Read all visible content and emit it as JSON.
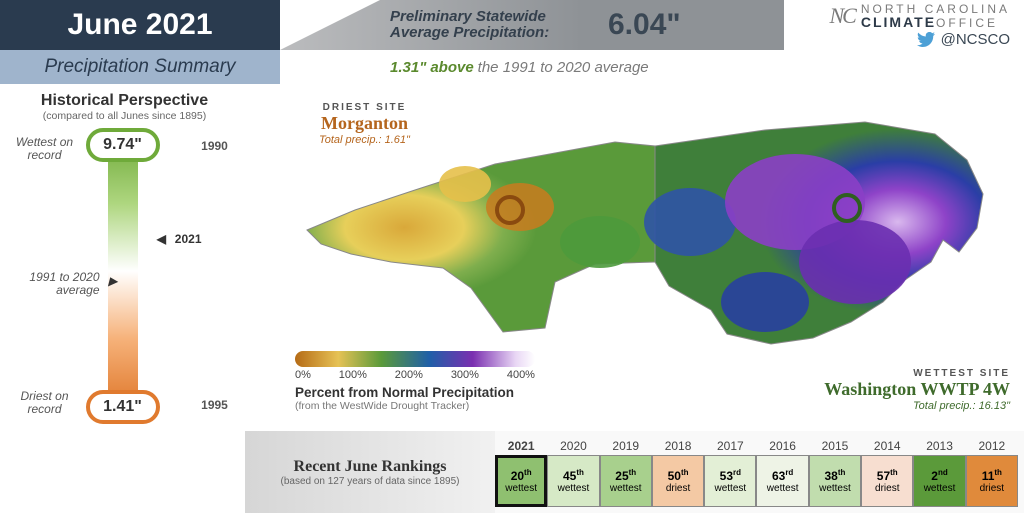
{
  "header": {
    "title": "June 2021",
    "subtitle": "Precipitation Summary",
    "prelim_label_l1": "Preliminary Statewide",
    "prelim_label_l2": "Average Precipitation:",
    "prelim_value": "6.04\"",
    "anomaly_value": "1.31\"",
    "anomaly_dir": "above",
    "anomaly_baseline": "the 1991 to 2020 average",
    "logo_top": "NORTH CAROLINA",
    "logo_bottom": "CLIMATE",
    "logo_bottom2": "OFFICE",
    "twitter": "@NCSCO"
  },
  "historical": {
    "title": "Historical Perspective",
    "subtitle": "(compared to all Junes since 1895)",
    "wettest_label": "Wettest on record",
    "wettest_value": "9.74\"",
    "wettest_year": "1990",
    "driest_label": "Driest on record",
    "driest_value": "1.41\"",
    "driest_year": "1995",
    "current_year": "2021",
    "avg_label": "1991 to 2020 average",
    "bar_colors": {
      "wet": "#6faa3a",
      "mid": "#ffffff",
      "dry": "#e07a2e"
    }
  },
  "map": {
    "driest_kind": "DRIEST SITE",
    "driest_name": "Morganton",
    "driest_total": "Total precip.: 1.61\"",
    "wettest_kind": "WETTEST SITE",
    "wettest_name": "Washington WWTP 4W",
    "wettest_total": "Total precip.: 16.13\"",
    "legend_title": "Percent from Normal Precipitation",
    "legend_sub": "(from the WestWide Drought Tracker)",
    "legend_ticks": [
      "0%",
      "100%",
      "200%",
      "300%",
      "400%"
    ],
    "legend_stops": [
      "#b56b16",
      "#e6c255",
      "#5a9a3a",
      "#1f5fa8",
      "#7a2fb0",
      "#e9d7f5",
      "#ffffff"
    ],
    "dry_ring_color": "#8a4a0f",
    "wet_ring_color": "#2f5f20"
  },
  "rankings": {
    "title": "Recent June Rankings",
    "subtitle": "(based on 127 years of data since 1895)",
    "years": [
      "2021",
      "2020",
      "2019",
      "2018",
      "2017",
      "2016",
      "2015",
      "2014",
      "2013",
      "2012"
    ],
    "cells": [
      {
        "ord": "20",
        "suf": "th",
        "kind": "wettest",
        "bg": "#8fc070"
      },
      {
        "ord": "45",
        "suf": "th",
        "kind": "wettest",
        "bg": "#d6e9c6"
      },
      {
        "ord": "25",
        "suf": "th",
        "kind": "wettest",
        "bg": "#a8d08d"
      },
      {
        "ord": "50",
        "suf": "th",
        "kind": "driest",
        "bg": "#f4c9a4"
      },
      {
        "ord": "53",
        "suf": "rd",
        "kind": "wettest",
        "bg": "#e3efd6"
      },
      {
        "ord": "63",
        "suf": "rd",
        "kind": "wettest",
        "bg": "#eef3e6"
      },
      {
        "ord": "38",
        "suf": "th",
        "kind": "wettest",
        "bg": "#c1ddae"
      },
      {
        "ord": "57",
        "suf": "th",
        "kind": "driest",
        "bg": "#f7ded0"
      },
      {
        "ord": "2",
        "suf": "nd",
        "kind": "wettest",
        "bg": "#5b9a3a"
      },
      {
        "ord": "11",
        "suf": "th",
        "kind": "driest",
        "bg": "#e08a3b"
      }
    ]
  }
}
